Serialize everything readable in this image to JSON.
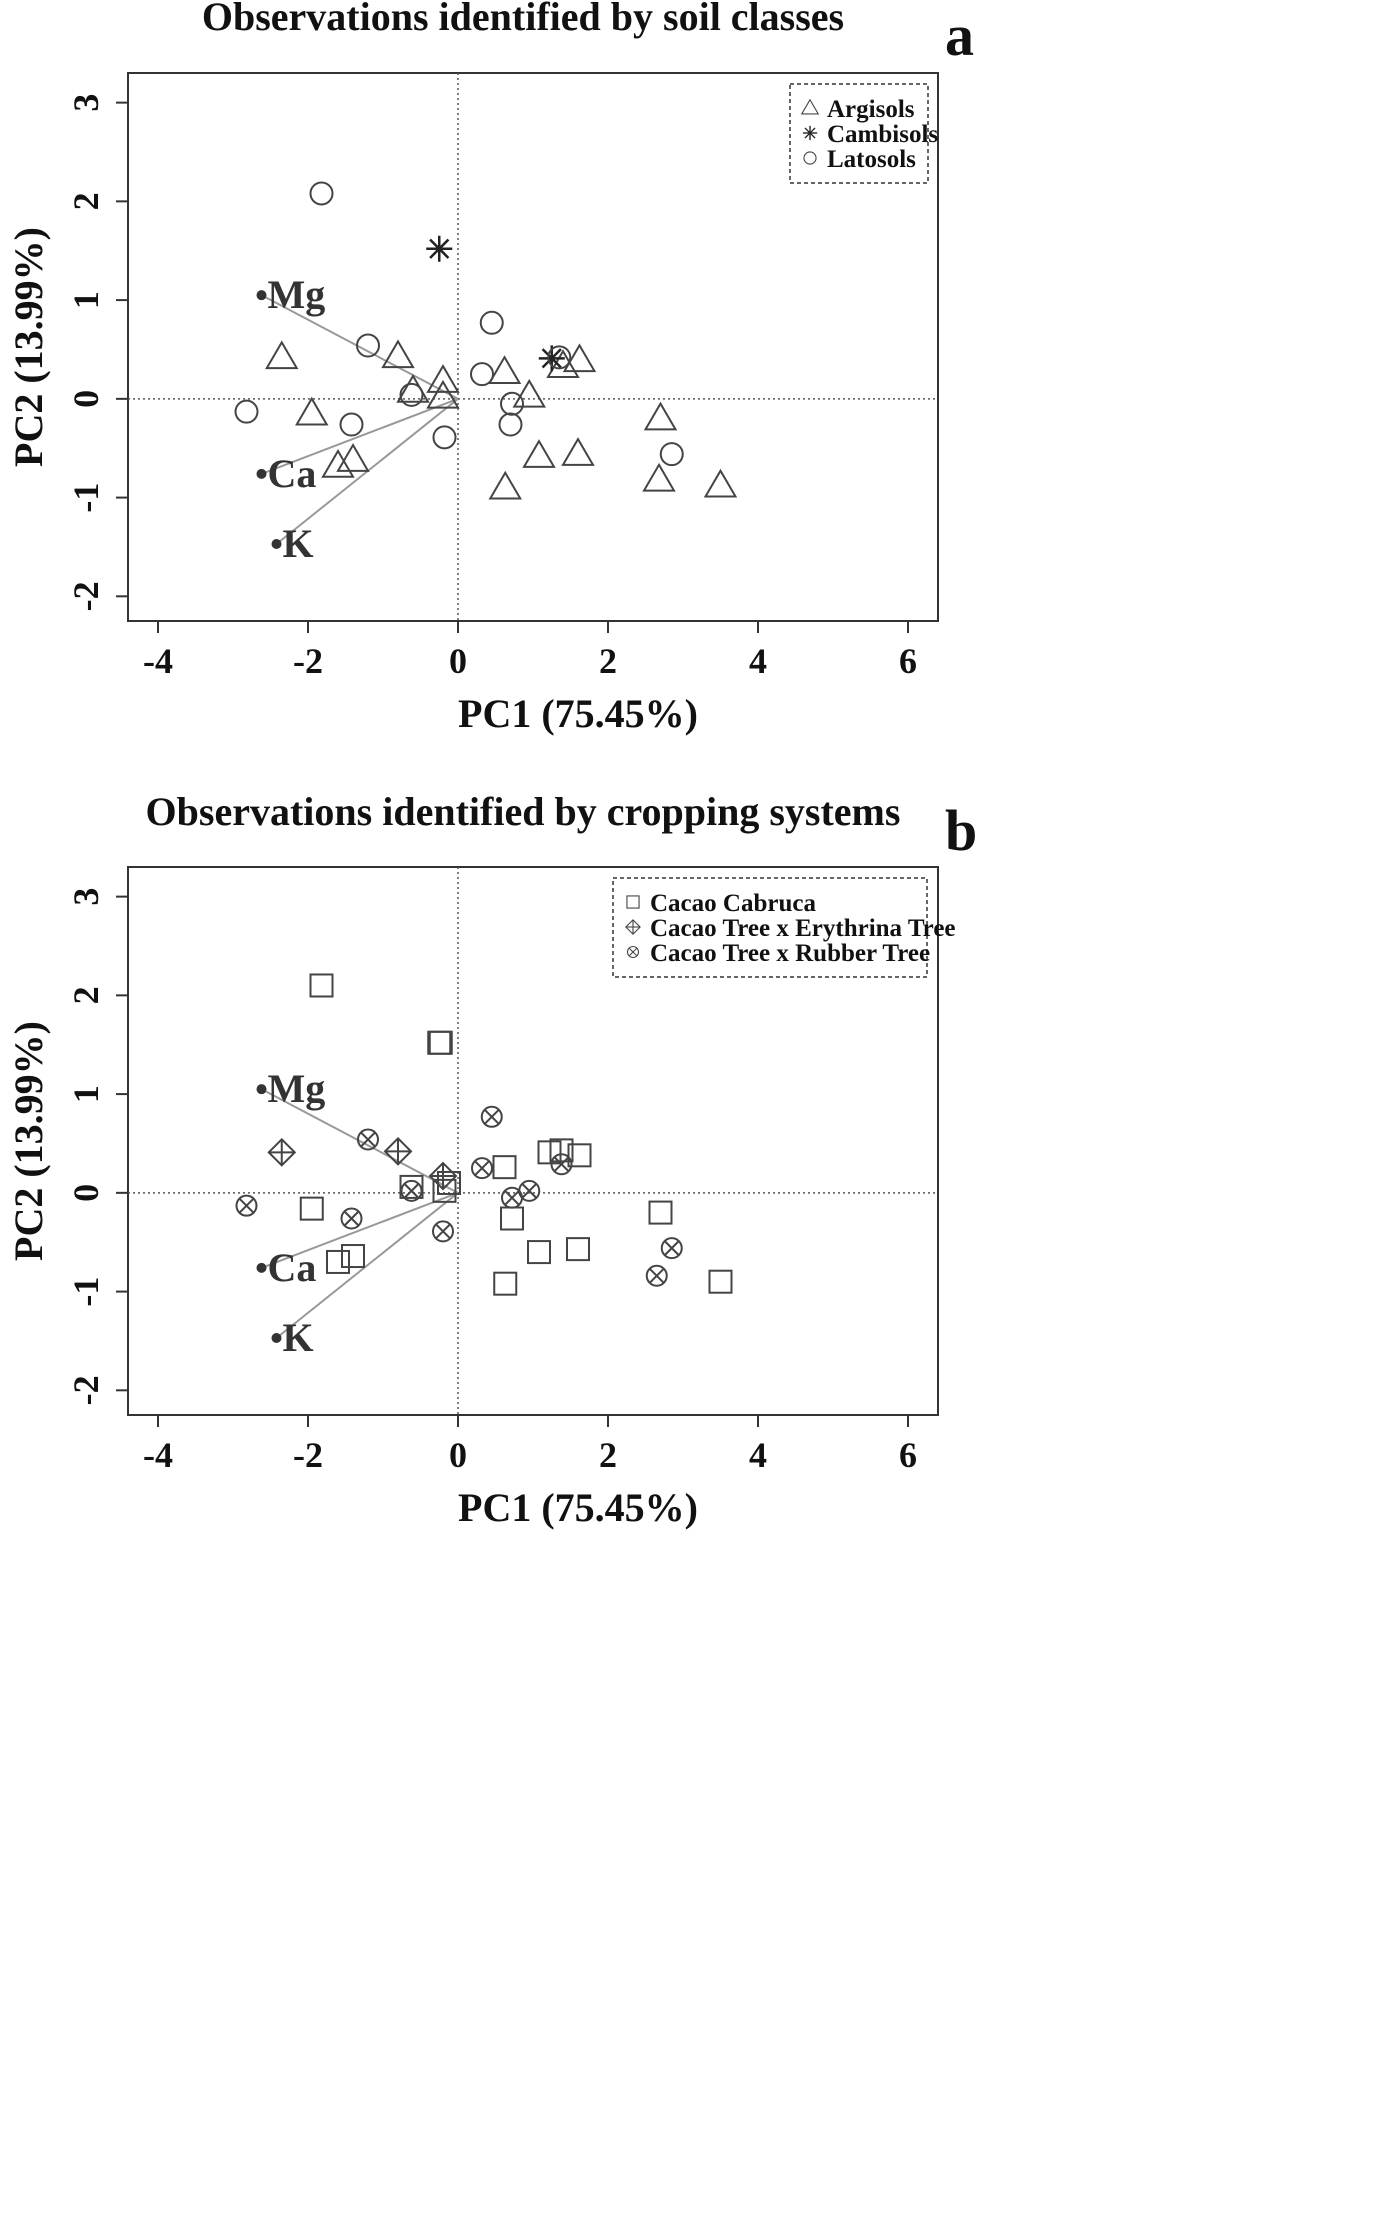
{
  "chart_data": [
    {
      "type": "scatter",
      "panel_letter": "a",
      "title": "Observations identified by soil classes",
      "xlabel": "PC1 (75.45%)",
      "ylabel": "PC2 (13.99%)",
      "xlim": [
        -4.4,
        6.4
      ],
      "ylim": [
        -2.25,
        3.3
      ],
      "xticks": [
        -4,
        -2,
        0,
        2,
        4,
        6
      ],
      "yticks": [
        -2,
        -1,
        0,
        1,
        2,
        3
      ],
      "reference_lines": {
        "x": 0,
        "y": 0,
        "style": "dotted"
      },
      "grid": false,
      "legend_position": "top-right",
      "series": [
        {
          "name": "Argisols",
          "marker": "triangle",
          "points": [
            [
              -2.35,
              0.42
            ],
            [
              -1.95,
              -0.15
            ],
            [
              -1.6,
              -0.68
            ],
            [
              -1.4,
              -0.62
            ],
            [
              -0.8,
              0.43
            ],
            [
              -0.6,
              0.08
            ],
            [
              -0.2,
              0.18
            ],
            [
              -0.2,
              0.02
            ],
            [
              0.62,
              0.27
            ],
            [
              0.95,
              0.03
            ],
            [
              1.4,
              0.33
            ],
            [
              1.62,
              0.39
            ],
            [
              1.08,
              -0.58
            ],
            [
              1.6,
              -0.56
            ],
            [
              0.63,
              -0.9
            ],
            [
              2.7,
              -0.2
            ],
            [
              2.68,
              -0.82
            ],
            [
              3.5,
              -0.88
            ]
          ]
        },
        {
          "name": "Cambisols",
          "marker": "asterisk",
          "points": [
            [
              -0.25,
              1.52
            ],
            [
              1.25,
              0.41
            ]
          ]
        },
        {
          "name": "Latosols",
          "marker": "circle",
          "points": [
            [
              -1.82,
              2.08
            ],
            [
              -1.2,
              0.54
            ],
            [
              -2.82,
              -0.13
            ],
            [
              -1.42,
              -0.26
            ],
            [
              -0.62,
              0.04
            ],
            [
              -0.18,
              -0.39
            ],
            [
              0.32,
              0.25
            ],
            [
              0.45,
              0.77
            ],
            [
              0.72,
              -0.05
            ],
            [
              0.7,
              -0.26
            ],
            [
              1.35,
              0.42
            ],
            [
              2.85,
              -0.56
            ]
          ]
        }
      ],
      "loadings": [
        {
          "label": "Mg",
          "x": -2.62,
          "y": 1.05
        },
        {
          "label": "Ca",
          "x": -2.62,
          "y": -0.76
        },
        {
          "label": "K",
          "x": -2.42,
          "y": -1.47
        }
      ]
    },
    {
      "type": "scatter",
      "panel_letter": "b",
      "title": "Observations identified by cropping systems",
      "xlabel": "PC1 (75.45%)",
      "ylabel": "PC2 (13.99%)",
      "xlim": [
        -4.4,
        6.4
      ],
      "ylim": [
        -2.25,
        3.3
      ],
      "xticks": [
        -4,
        -2,
        0,
        2,
        4,
        6
      ],
      "yticks": [
        -2,
        -1,
        0,
        1,
        2,
        3
      ],
      "reference_lines": {
        "x": 0,
        "y": 0,
        "style": "dotted"
      },
      "grid": false,
      "legend_position": "top-right",
      "series": [
        {
          "name": "Cacao Cabruca",
          "marker": "square",
          "points": [
            [
              -1.82,
              2.1
            ],
            [
              -0.25,
              1.52
            ],
            [
              -0.23,
              1.52
            ],
            [
              -1.95,
              -0.16
            ],
            [
              -1.6,
              -0.7
            ],
            [
              -1.4,
              -0.64
            ],
            [
              -0.62,
              0.06
            ],
            [
              -0.18,
              0.02
            ],
            [
              -0.12,
              0.1
            ],
            [
              0.62,
              0.26
            ],
            [
              0.72,
              -0.26
            ],
            [
              1.22,
              0.41
            ],
            [
              1.38,
              0.43
            ],
            [
              1.62,
              0.38
            ],
            [
              1.08,
              -0.6
            ],
            [
              1.6,
              -0.57
            ],
            [
              0.63,
              -0.92
            ],
            [
              2.7,
              -0.2
            ],
            [
              3.5,
              -0.9
            ]
          ]
        },
        {
          "name": "Cacao Tree x Erythrina Tree",
          "marker": "crossed-diamond",
          "points": [
            [
              -2.35,
              0.41
            ],
            [
              -0.8,
              0.42
            ],
            [
              -0.2,
              0.17
            ]
          ]
        },
        {
          "name": "Cacao Tree x Rubber Tree",
          "marker": "crossed-circle",
          "points": [
            [
              -2.82,
              -0.13
            ],
            [
              -1.2,
              0.54
            ],
            [
              -1.42,
              -0.26
            ],
            [
              -0.62,
              0.02
            ],
            [
              -0.2,
              -0.39
            ],
            [
              0.32,
              0.25
            ],
            [
              0.45,
              0.77
            ],
            [
              0.72,
              -0.05
            ],
            [
              0.95,
              0.02
            ],
            [
              1.38,
              0.29
            ],
            [
              2.65,
              -0.84
            ],
            [
              2.85,
              -0.56
            ]
          ]
        }
      ],
      "loadings": [
        {
          "label": "Mg",
          "x": -2.62,
          "y": 1.05
        },
        {
          "label": "Ca",
          "x": -2.62,
          "y": -0.76
        },
        {
          "label": "K",
          "x": -2.42,
          "y": -1.47
        }
      ]
    }
  ]
}
